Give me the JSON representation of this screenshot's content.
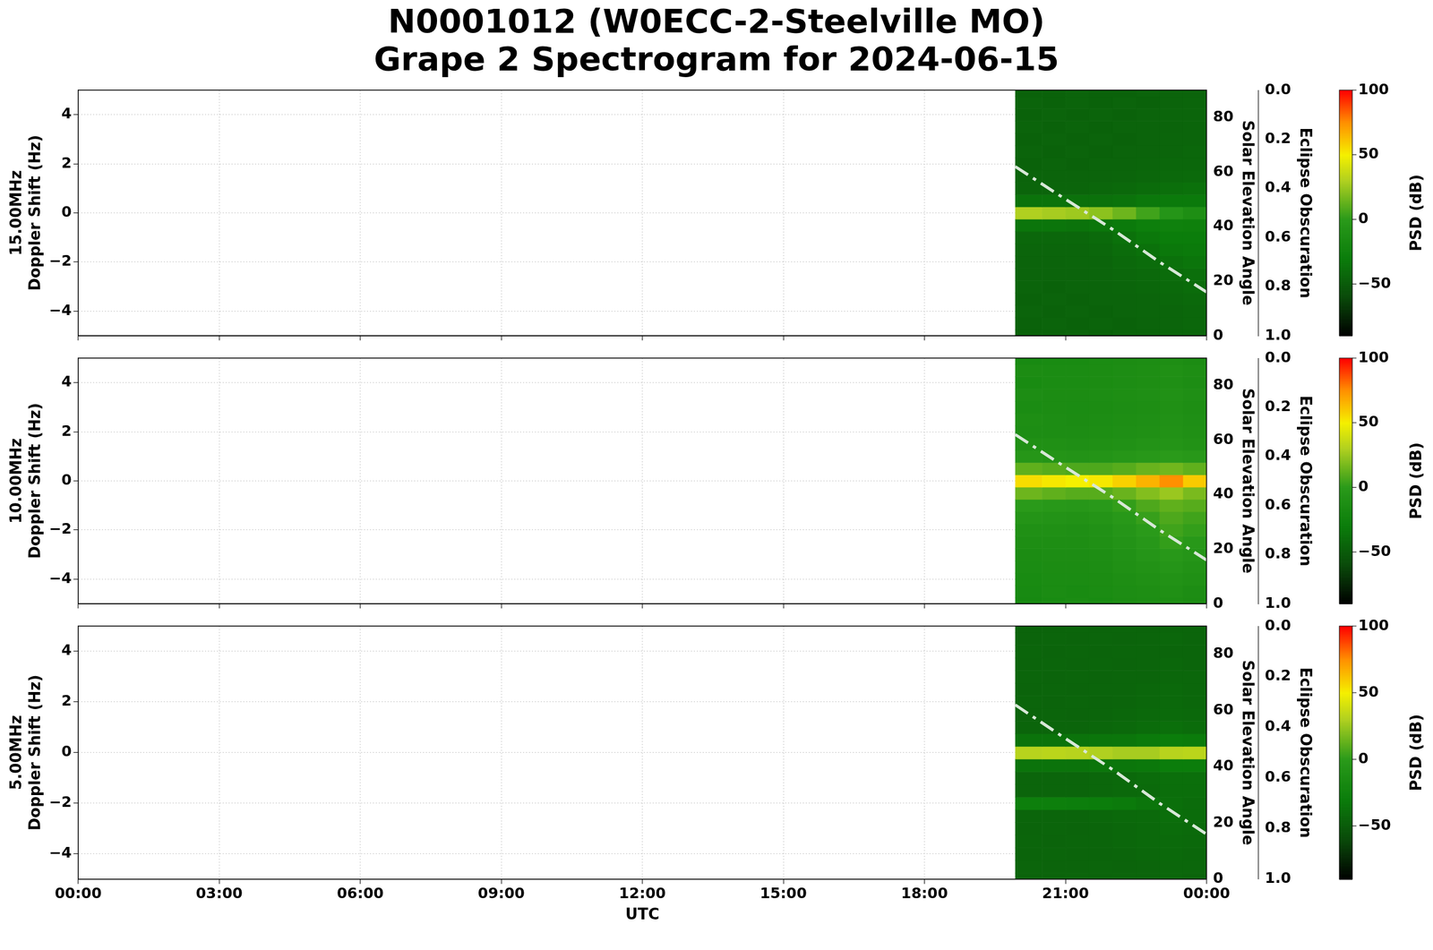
{
  "title": [
    "N0001012 (W0ECC-2-Steelville MO)",
    "Grape 2 Spectrogram for 2024-06-15"
  ],
  "xlabel": "UTC",
  "xlim": [
    0,
    24
  ],
  "xticks": [
    {
      "value": 0,
      "label": "00:00"
    },
    {
      "value": 3,
      "label": "03:00"
    },
    {
      "value": 6,
      "label": "06:00"
    },
    {
      "value": 9,
      "label": "09:00"
    },
    {
      "value": 12,
      "label": "12:00"
    },
    {
      "value": 15,
      "label": "15:00"
    },
    {
      "value": 18,
      "label": "18:00"
    },
    {
      "value": 21,
      "label": "21:00"
    },
    {
      "value": 24,
      "label": "00:00"
    }
  ],
  "grid": true,
  "chart_data": [
    {
      "type": "heatmap",
      "ylabel": [
        "15.00MHz",
        "Doppler Shift (Hz)"
      ],
      "ylim": [
        -5,
        5
      ],
      "yticks": [
        {
          "value": -4,
          "label": "−4"
        },
        {
          "value": -2,
          "label": "−2"
        },
        0,
        2,
        4
      ],
      "y2label": "Solar Elevation Angle",
      "y2lim": [
        0,
        90
      ],
      "y2ticks": [
        0,
        20,
        40,
        60,
        80
      ],
      "y3label": "Eclipse Obscuration",
      "y3lim": [
        1,
        0
      ],
      "y3ticks": [
        {
          "value": 0,
          "label": "0.0"
        },
        {
          "value": 0.2,
          "label": "0.2"
        },
        {
          "value": 0.4,
          "label": "0.4"
        },
        {
          "value": 0.6,
          "label": "0.6"
        },
        {
          "value": 0.8,
          "label": "0.8"
        },
        {
          "value": 1,
          "label": "1.0"
        }
      ],
      "time_bins": [
        19.93,
        20.5,
        21,
        21.5,
        22,
        22.5,
        23,
        23.5,
        24
      ],
      "doppler_bins": [
        -5,
        -4.75,
        -4.25,
        -3.75,
        -3.25,
        -2.75,
        -2.25,
        -1.75,
        -1.25,
        -0.75,
        -0.25,
        0.25,
        0.75,
        1.25,
        1.75,
        2.25,
        2.75,
        3.25,
        3.75,
        4.25,
        4.75,
        5
      ],
      "cells": [
        [
          -46,
          -46,
          -45,
          -46,
          -45,
          -45,
          -44,
          -44
        ],
        [
          -46,
          -45,
          -46,
          -45,
          -46,
          -45,
          -44,
          -43
        ],
        [
          -45,
          -46,
          -45,
          -46,
          -45,
          -44,
          -44,
          -43
        ],
        [
          -46,
          -45,
          -46,
          -45,
          -45,
          -44,
          -43,
          -42
        ],
        [
          -45,
          -46,
          -45,
          -45,
          -44,
          -43,
          -42,
          -40
        ],
        [
          -45,
          -45,
          -45,
          -44,
          -43,
          -42,
          -40,
          -38
        ],
        [
          -45,
          -45,
          -44,
          -44,
          -42,
          -40,
          -37,
          -35
        ],
        [
          -44,
          -44,
          -44,
          -43,
          -40,
          -37,
          -33,
          -32
        ],
        [
          -43,
          -43,
          -43,
          -41,
          -37,
          -33,
          -30,
          -30
        ],
        [
          -35,
          -35,
          -36,
          -34,
          -32,
          -28,
          -26,
          -27
        ],
        [
          30,
          28,
          26,
          22,
          15,
          5,
          -5,
          -12
        ],
        [
          -36,
          -36,
          -37,
          -37,
          -36,
          -33,
          -32,
          -32
        ],
        [
          -44,
          -44,
          -44,
          -43,
          -42,
          -40,
          -38,
          -37
        ],
        [
          -45,
          -45,
          -45,
          -45,
          -44,
          -43,
          -42,
          -41
        ],
        [
          -46,
          -45,
          -46,
          -45,
          -45,
          -44,
          -43,
          -43
        ],
        [
          -45,
          -46,
          -45,
          -46,
          -45,
          -45,
          -44,
          -43
        ],
        [
          -46,
          -45,
          -46,
          -45,
          -46,
          -45,
          -44,
          -44
        ],
        [
          -45,
          -46,
          -45,
          -46,
          -45,
          -45,
          -45,
          -44
        ],
        [
          -46,
          -45,
          -46,
          -45,
          -46,
          -45,
          -44,
          -44
        ],
        [
          -45,
          -46,
          -45,
          -46,
          -45,
          -46,
          -45,
          -44
        ],
        [
          -46,
          -46,
          -45,
          -46,
          -46,
          -45,
          -45,
          -45
        ]
      ],
      "colorbar": {
        "label": "PSD (dB)",
        "lim": [
          -90,
          100
        ],
        "ticks": [
          {
            "value": -50,
            "label": "−50"
          },
          0,
          50,
          100
        ]
      },
      "series": [
        {
          "axis": "y2",
          "color": "#d8e8d8",
          "line_style": "dashdot",
          "x": [
            19.93,
            21,
            22,
            23,
            24
          ],
          "values": [
            62,
            50,
            39,
            27,
            16
          ]
        }
      ]
    },
    {
      "type": "heatmap",
      "ylabel": [
        "10.00MHz",
        "Doppler Shift (Hz)"
      ],
      "ylim": [
        -5,
        5
      ],
      "yticks": [
        {
          "value": -4,
          "label": "−4"
        },
        {
          "value": -2,
          "label": "−2"
        },
        0,
        2,
        4
      ],
      "y2label": "Solar Elevation Angle",
      "y2lim": [
        0,
        90
      ],
      "y2ticks": [
        0,
        20,
        40,
        60,
        80
      ],
      "y3label": "Eclipse Obscuration",
      "y3lim": [
        1,
        0
      ],
      "y3ticks": [
        {
          "value": 0,
          "label": "0.0"
        },
        {
          "value": 0.2,
          "label": "0.2"
        },
        {
          "value": 0.4,
          "label": "0.4"
        },
        {
          "value": 0.6,
          "label": "0.6"
        },
        {
          "value": 0.8,
          "label": "0.8"
        },
        {
          "value": 1,
          "label": "1.0"
        }
      ],
      "time_bins": [
        19.93,
        20.5,
        21,
        21.5,
        22,
        22.5,
        23,
        23.5,
        24
      ],
      "doppler_bins": [
        -5,
        -4.75,
        -4.25,
        -3.75,
        -3.25,
        -2.75,
        -2.25,
        -1.75,
        -1.25,
        -0.75,
        -0.25,
        0.25,
        0.75,
        1.25,
        1.75,
        2.25,
        2.75,
        3.25,
        3.75,
        4.25,
        4.75,
        5
      ],
      "cells": [
        [
          -18,
          -16,
          -15,
          -16,
          -14,
          -13,
          -12,
          -14
        ],
        [
          -17,
          -15,
          -16,
          -15,
          -13,
          -12,
          -10,
          -13
        ],
        [
          -16,
          -15,
          -15,
          -14,
          -12,
          -10,
          -8,
          -10
        ],
        [
          -15,
          -14,
          -14,
          -13,
          -10,
          -8,
          -5,
          -8
        ],
        [
          -14,
          -13,
          -13,
          -12,
          -9,
          -5,
          -2,
          -5
        ],
        [
          -12,
          -12,
          -12,
          -10,
          -7,
          -3,
          2,
          -2
        ],
        [
          -10,
          -10,
          -11,
          -9,
          -5,
          0,
          5,
          2
        ],
        [
          -6,
          -7,
          -8,
          -6,
          -2,
          3,
          8,
          5
        ],
        [
          0,
          -2,
          -3,
          -1,
          2,
          8,
          12,
          10
        ],
        [
          15,
          12,
          10,
          10,
          14,
          20,
          25,
          18
        ],
        [
          55,
          52,
          50,
          52,
          58,
          66,
          75,
          60
        ],
        [
          12,
          10,
          8,
          8,
          10,
          14,
          16,
          12
        ],
        [
          -4,
          -6,
          -7,
          -6,
          -4,
          -2,
          0,
          -2
        ],
        [
          -10,
          -10,
          -11,
          -10,
          -9,
          -7,
          -6,
          -8
        ],
        [
          -13,
          -13,
          -13,
          -12,
          -11,
          -10,
          -8,
          -10
        ],
        [
          -12,
          -13,
          -14,
          -13,
          -12,
          -11,
          -9,
          -11
        ],
        [
          -15,
          -14,
          -15,
          -14,
          -13,
          -12,
          -10,
          -12
        ],
        [
          -13,
          -14,
          -14,
          -13,
          -12,
          -11,
          -9,
          -11
        ],
        [
          -16,
          -15,
          -15,
          -14,
          -13,
          -12,
          -11,
          -13
        ],
        [
          -14,
          -15,
          -15,
          -14,
          -13,
          -12,
          -10,
          -12
        ],
        [
          -17,
          -16,
          -16,
          -15,
          -14,
          -13,
          -12,
          -14
        ]
      ],
      "colorbar": {
        "label": "PSD (dB)",
        "lim": [
          -90,
          100
        ],
        "ticks": [
          {
            "value": -50,
            "label": "−50"
          },
          0,
          50,
          100
        ]
      },
      "series": [
        {
          "axis": "y2",
          "color": "#d8e8d8",
          "line_style": "dashdot",
          "x": [
            19.93,
            21,
            22,
            23,
            24
          ],
          "values": [
            62,
            50,
            39,
            27,
            16
          ]
        }
      ]
    },
    {
      "type": "heatmap",
      "ylabel": [
        "5.00MHz",
        "Doppler Shift (Hz)"
      ],
      "ylim": [
        -5,
        5
      ],
      "yticks": [
        {
          "value": -4,
          "label": "−4"
        },
        {
          "value": -2,
          "label": "−2"
        },
        0,
        2,
        4
      ],
      "y2label": "Solar Elevation Angle",
      "y2lim": [
        0,
        90
      ],
      "y2ticks": [
        0,
        20,
        40,
        60,
        80
      ],
      "y3label": "Eclipse Obscuration",
      "y3lim": [
        1,
        0
      ],
      "y3ticks": [
        {
          "value": 0,
          "label": "0.0"
        },
        {
          "value": 0.2,
          "label": "0.2"
        },
        {
          "value": 0.4,
          "label": "0.4"
        },
        {
          "value": 0.6,
          "label": "0.6"
        },
        {
          "value": 0.8,
          "label": "0.8"
        },
        {
          "value": 1,
          "label": "1.0"
        }
      ],
      "time_bins": [
        19.93,
        20.5,
        21,
        21.5,
        22,
        22.5,
        23,
        23.5,
        24
      ],
      "doppler_bins": [
        -5,
        -4.75,
        -4.25,
        -3.75,
        -3.25,
        -2.75,
        -2.25,
        -1.75,
        -1.25,
        -0.75,
        -0.25,
        0.25,
        0.75,
        1.25,
        1.75,
        2.25,
        2.75,
        3.25,
        3.75,
        4.25,
        4.75,
        5
      ],
      "cells": [
        [
          -45,
          -45,
          -44,
          -45,
          -44,
          -44,
          -43,
          -44
        ],
        [
          -44,
          -45,
          -45,
          -44,
          -45,
          -44,
          -43,
          -43
        ],
        [
          -45,
          -44,
          -45,
          -45,
          -44,
          -43,
          -42,
          -43
        ],
        [
          -44,
          -45,
          -44,
          -44,
          -43,
          -42,
          -41,
          -42
        ],
        [
          -45,
          -44,
          -45,
          -44,
          -43,
          -42,
          -40,
          -41
        ],
        [
          -44,
          -44,
          -44,
          -43,
          -42,
          -41,
          -39,
          -40
        ],
        [
          -28,
          -28,
          -29,
          -30,
          -32,
          -35,
          -38,
          -40
        ],
        [
          -44,
          -44,
          -44,
          -43,
          -42,
          -41,
          -39,
          -39
        ],
        [
          -44,
          -44,
          -44,
          -43,
          -42,
          -40,
          -38,
          -38
        ],
        [
          -36,
          -36,
          -36,
          -35,
          -34,
          -33,
          -30,
          -30
        ],
        [
          32,
          33,
          32,
          30,
          28,
          28,
          32,
          33
        ],
        [
          -36,
          -36,
          -36,
          -35,
          -34,
          -32,
          -30,
          -31
        ],
        [
          -44,
          -44,
          -44,
          -43,
          -42,
          -40,
          -38,
          -40
        ],
        [
          -45,
          -44,
          -45,
          -44,
          -43,
          -42,
          -41,
          -42
        ],
        [
          -44,
          -45,
          -44,
          -45,
          -44,
          -43,
          -42,
          -43
        ],
        [
          -45,
          -44,
          -45,
          -44,
          -44,
          -43,
          -42,
          -43
        ],
        [
          -44,
          -45,
          -44,
          -45,
          -44,
          -44,
          -43,
          -43
        ],
        [
          -45,
          -44,
          -45,
          -44,
          -45,
          -44,
          -43,
          -44
        ],
        [
          -44,
          -45,
          -44,
          -45,
          -44,
          -44,
          -44,
          -44
        ],
        [
          -45,
          -44,
          -45,
          -44,
          -45,
          -44,
          -43,
          -44
        ],
        [
          -45,
          -45,
          -44,
          -45,
          -44,
          -45,
          -44,
          -44
        ]
      ],
      "colorbar": {
        "label": "PSD (dB)",
        "lim": [
          -90,
          100
        ],
        "ticks": [
          {
            "value": -50,
            "label": "−50"
          },
          0,
          50,
          100
        ]
      },
      "series": [
        {
          "axis": "y2",
          "color": "#d8e8d8",
          "line_style": "dashdot",
          "x": [
            19.93,
            21,
            22,
            23,
            24
          ],
          "values": [
            62,
            50,
            39,
            27,
            16
          ]
        }
      ]
    }
  ]
}
